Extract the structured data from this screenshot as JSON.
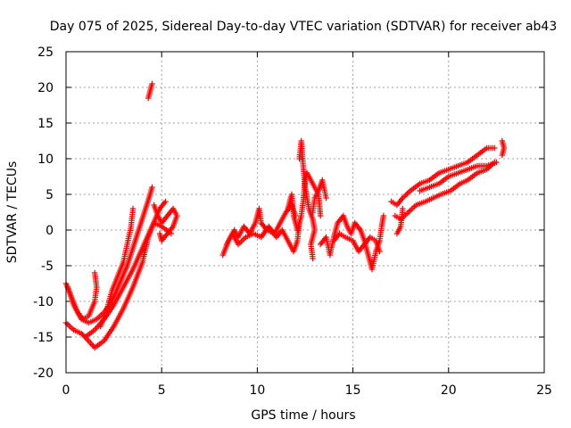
{
  "chart_data": {
    "type": "scatter",
    "title": "Day 075 of 2025, Sidereal Day-to-day VTEC variation (SDTVAR) for receiver ab43",
    "xlabel": "GPS time / hours",
    "ylabel": "SDTVAR / TECUs",
    "xlim": [
      0,
      25
    ],
    "ylim": [
      -20,
      25
    ],
    "x_ticks": [
      "0",
      "5",
      "10",
      "15",
      "20",
      "25"
    ],
    "y_ticks": [
      "-20",
      "-15",
      "-10",
      "-5",
      "0",
      "5",
      "10",
      "15",
      "20",
      "25"
    ],
    "grid": true,
    "marker": "plus",
    "color": "#ff0000",
    "series": [
      {
        "segments": [
          [
            [
              0.0,
              -7.5
            ],
            [
              0.3,
              -9.5
            ],
            [
              0.6,
              -11.5
            ],
            [
              0.9,
              -12.5
            ],
            [
              1.2,
              -12.0
            ],
            [
              1.5,
              -10.0
            ],
            [
              1.6,
              -8.0
            ],
            [
              1.5,
              -6.0
            ]
          ],
          [
            [
              0.1,
              -8.0
            ],
            [
              0.4,
              -10.5
            ],
            [
              0.8,
              -12.5
            ],
            [
              1.2,
              -13.0
            ],
            [
              1.6,
              -12.5
            ],
            [
              2.0,
              -11.5
            ],
            [
              2.4,
              -10.0
            ],
            [
              2.8,
              -7.5
            ],
            [
              3.2,
              -5.0
            ],
            [
              3.5,
              -2.5
            ],
            [
              3.8,
              0.0
            ],
            [
              4.1,
              2.5
            ],
            [
              4.4,
              5.0
            ],
            [
              4.5,
              6.0
            ]
          ],
          [
            [
              0.0,
              -13.0
            ],
            [
              0.4,
              -14.0
            ],
            [
              0.8,
              -14.5
            ],
            [
              1.0,
              -15.0
            ],
            [
              1.5,
              -14.0
            ],
            [
              2.0,
              -12.5
            ],
            [
              2.5,
              -10.5
            ],
            [
              3.0,
              -8.0
            ],
            [
              3.5,
              -5.5
            ],
            [
              4.0,
              -2.5
            ],
            [
              4.5,
              0.5
            ],
            [
              4.9,
              3.0
            ],
            [
              5.2,
              4.0
            ]
          ],
          [
            [
              1.0,
              -15.0
            ],
            [
              1.5,
              -16.5
            ],
            [
              2.0,
              -15.5
            ],
            [
              2.5,
              -13.5
            ],
            [
              3.0,
              -11.0
            ],
            [
              3.5,
              -8.0
            ],
            [
              4.0,
              -4.5
            ],
            [
              4.3,
              -1.0
            ],
            [
              4.6,
              1.0
            ],
            [
              5.0,
              0.5
            ],
            [
              5.5,
              -0.5
            ]
          ],
          [
            [
              1.8,
              -13.5
            ],
            [
              2.1,
              -11.5
            ],
            [
              2.4,
              -8.5
            ],
            [
              2.7,
              -6.5
            ],
            [
              3.0,
              -4.5
            ],
            [
              3.2,
              -2.0
            ],
            [
              3.4,
              0.5
            ],
            [
              3.5,
              3.0
            ]
          ],
          [
            [
              4.3,
              18.5
            ],
            [
              4.4,
              19.5
            ],
            [
              4.5,
              20.5
            ]
          ],
          [
            [
              4.6,
              3.5
            ],
            [
              4.8,
              2.0
            ],
            [
              5.0,
              1.0
            ],
            [
              5.3,
              2.0
            ],
            [
              5.6,
              3.0
            ],
            [
              5.8,
              2.0
            ],
            [
              5.6,
              0.5
            ],
            [
              5.3,
              -0.5
            ],
            [
              5.0,
              -1.5
            ],
            [
              4.9,
              -0.5
            ]
          ],
          [
            [
              8.2,
              -3.5
            ],
            [
              8.5,
              -1.5
            ],
            [
              8.8,
              0.0
            ],
            [
              9.0,
              -1.0
            ],
            [
              9.3,
              0.5
            ],
            [
              9.6,
              -0.5
            ],
            [
              9.9,
              1.0
            ],
            [
              10.1,
              3.0
            ],
            [
              10.2,
              1.0
            ],
            [
              10.5,
              0.0
            ],
            [
              10.9,
              -0.5
            ],
            [
              11.2,
              1.0
            ],
            [
              11.5,
              2.5
            ],
            [
              11.8,
              3.5
            ],
            [
              12.0,
              2.0
            ]
          ],
          [
            [
              8.4,
              -2.0
            ],
            [
              8.7,
              -0.5
            ],
            [
              9.0,
              -2.0
            ],
            [
              9.4,
              -1.0
            ],
            [
              9.8,
              -0.5
            ],
            [
              10.2,
              -1.0
            ],
            [
              10.6,
              0.5
            ],
            [
              11.0,
              -1.0
            ],
            [
              11.3,
              0.0
            ],
            [
              11.6,
              -1.5
            ],
            [
              11.9,
              -3.0
            ],
            [
              12.1,
              -1.5
            ],
            [
              12.2,
              1.0
            ]
          ],
          [
            [
              11.6,
              3.0
            ],
            [
              11.8,
              5.0
            ],
            [
              11.9,
              2.0
            ],
            [
              12.1,
              0.0
            ],
            [
              12.3,
              2.0
            ],
            [
              12.4,
              4.0
            ],
            [
              12.5,
              7.0
            ],
            [
              12.6,
              8.0
            ],
            [
              12.8,
              7.0
            ],
            [
              13.0,
              6.0
            ],
            [
              13.2,
              5.0
            ],
            [
              13.3,
              2.0
            ]
          ],
          [
            [
              12.2,
              10.0
            ],
            [
              12.3,
              12.5
            ],
            [
              12.4,
              9.0
            ],
            [
              12.5,
              6.0
            ],
            [
              12.7,
              3.0
            ],
            [
              12.9,
              1.5
            ],
            [
              13.0,
              0.0
            ],
            [
              12.8,
              -2.0
            ],
            [
              12.9,
              -4.0
            ]
          ],
          [
            [
              12.9,
              2.5
            ],
            [
              13.0,
              4.5
            ],
            [
              13.2,
              5.5
            ],
            [
              13.4,
              7.0
            ],
            [
              13.6,
              4.5
            ]
          ],
          [
            [
              13.3,
              -2.0
            ],
            [
              13.6,
              -1.0
            ],
            [
              13.8,
              -3.5
            ],
            [
              14.0,
              -1.0
            ],
            [
              14.2,
              1.0
            ],
            [
              14.5,
              2.0
            ],
            [
              14.7,
              0.5
            ],
            [
              14.9,
              -0.5
            ],
            [
              15.1,
              1.0
            ],
            [
              15.4,
              0.0
            ],
            [
              15.6,
              -1.5
            ],
            [
              15.8,
              -3.5
            ],
            [
              16.0,
              -5.5
            ],
            [
              16.2,
              -3.0
            ],
            [
              16.4,
              -1.5
            ],
            [
              16.5,
              0.5
            ],
            [
              16.6,
              2.0
            ]
          ],
          [
            [
              14.0,
              -1.5
            ],
            [
              14.3,
              -0.5
            ],
            [
              14.6,
              -1.0
            ],
            [
              15.0,
              -1.5
            ],
            [
              15.3,
              -3.0
            ],
            [
              15.6,
              -2.0
            ],
            [
              15.9,
              -1.0
            ],
            [
              16.2,
              -1.5
            ],
            [
              16.4,
              -3.0
            ]
          ],
          [
            [
              17.3,
              -0.5
            ],
            [
              17.5,
              0.5
            ],
            [
              17.6,
              3.0
            ]
          ],
          [
            [
              17.0,
              4.0
            ],
            [
              17.3,
              3.5
            ],
            [
              17.6,
              4.5
            ],
            [
              18.0,
              5.5
            ],
            [
              18.5,
              6.5
            ],
            [
              19.0,
              7.0
            ],
            [
              19.5,
              8.0
            ],
            [
              20.0,
              8.5
            ],
            [
              20.5,
              9.0
            ],
            [
              21.0,
              9.5
            ],
            [
              21.5,
              10.5
            ],
            [
              22.0,
              11.5
            ],
            [
              22.4,
              11.5
            ]
          ],
          [
            [
              17.2,
              2.0
            ],
            [
              17.5,
              1.5
            ],
            [
              17.9,
              2.5
            ],
            [
              18.3,
              3.5
            ],
            [
              18.8,
              4.0
            ],
            [
              19.2,
              4.5
            ],
            [
              19.6,
              5.0
            ],
            [
              20.1,
              5.5
            ],
            [
              20.6,
              6.5
            ],
            [
              21.0,
              7.0
            ],
            [
              21.5,
              8.0
            ],
            [
              22.0,
              8.5
            ],
            [
              22.4,
              9.5
            ]
          ],
          [
            [
              18.5,
              5.5
            ],
            [
              19.0,
              6.0
            ],
            [
              19.5,
              6.5
            ],
            [
              20.0,
              7.5
            ],
            [
              20.5,
              8.0
            ],
            [
              21.0,
              8.5
            ],
            [
              21.5,
              9.0
            ],
            [
              22.0,
              9.0
            ],
            [
              22.5,
              9.5
            ]
          ],
          [
            [
              22.8,
              10.5
            ],
            [
              22.9,
              11.5
            ],
            [
              22.8,
              12.5
            ]
          ]
        ]
      }
    ]
  }
}
